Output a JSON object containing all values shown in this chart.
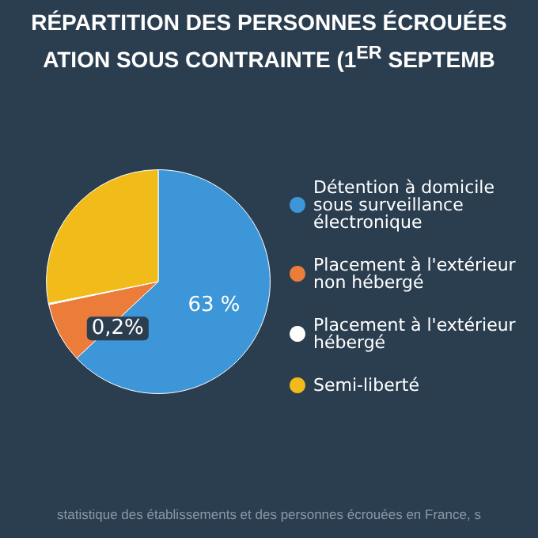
{
  "chart_data": {
    "type": "pie",
    "title": "RÉPARTITION DES PERSONNES ÉCROUÉES",
    "subtitle": "ATION SOUS CONTRAINTE (1$^{ER}$ SEPTEMB",
    "categories": [
      "Détention à domicile sous surveillance électronique",
      "Placement à l'extérieur non hébergé",
      "Placement à l'extérieur hébergé",
      "Semi-liberté"
    ],
    "values": [
      63,
      8.7,
      0.2,
      28.1
    ],
    "value_labels": [
      "63 %",
      null,
      "0,2%",
      null
    ],
    "colors": [
      "#3d96d8",
      "#ec7c3a",
      "#ffffff",
      "#f1bb1a"
    ],
    "legend": "right",
    "annotations": [
      "statistique des établissements et des personnes écrouées en France, s"
    ]
  }
}
